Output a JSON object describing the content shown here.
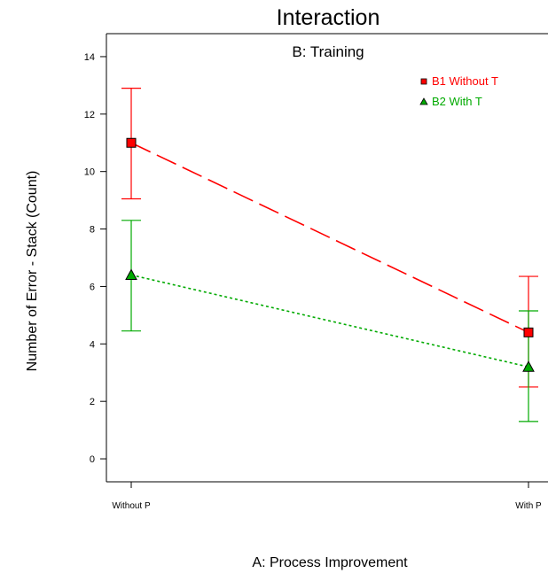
{
  "chart_data": {
    "type": "line",
    "title": "Interaction",
    "subtitle": "B: Training",
    "xlabel": "A: Process Improvement",
    "ylabel": "Number of Error - Stack (Count)",
    "categories": [
      "Without P",
      "With P"
    ],
    "ylim": [
      -0.8,
      14.8
    ],
    "yticks": [
      0,
      2,
      4,
      6,
      8,
      10,
      12,
      14
    ],
    "grid": false,
    "legend_position": "top-right",
    "series": [
      {
        "name": "B1 Without T",
        "color": "#ff0000",
        "marker": "square",
        "line_style": "long-dash",
        "values": [
          11.0,
          4.4
        ],
        "error_low": [
          9.05,
          2.5
        ],
        "error_high": [
          12.9,
          6.35
        ]
      },
      {
        "name": "B2 With T",
        "color": "#00aa00",
        "marker": "triangle",
        "line_style": "dotted",
        "values": [
          6.4,
          3.2
        ],
        "error_low": [
          4.45,
          1.3
        ],
        "error_high": [
          8.3,
          5.15
        ]
      }
    ]
  }
}
